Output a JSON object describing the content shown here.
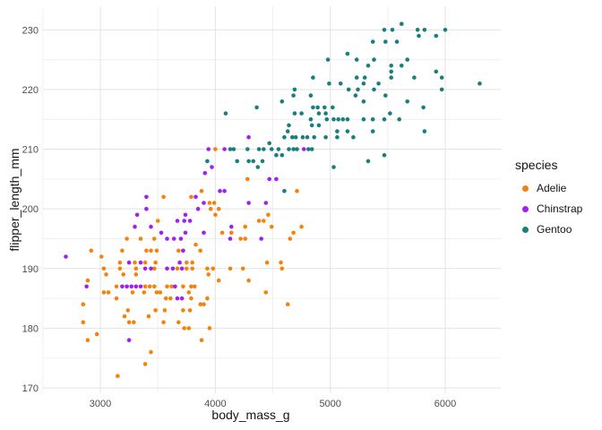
{
  "figure": {
    "background": "#ffffff",
    "panel_background": "#ffffff",
    "grid_major_color": "#e3e3e3",
    "grid_minor_color": "#f0f0f0",
    "tick_label_color": "#4d4d4d",
    "title_color": "#141414"
  },
  "chart_data": {
    "type": "scatter",
    "title": "",
    "xlabel": "body_mass_g",
    "ylabel": "flipper_length_mm",
    "grid": true,
    "legend": {
      "title": "species",
      "position": "right"
    },
    "x_ticks": [
      3000,
      4000,
      5000,
      6000
    ],
    "x_minor_ticks": [
      2500,
      3500,
      4500,
      5500
    ],
    "y_ticks": [
      170,
      180,
      190,
      200,
      210,
      220,
      230
    ],
    "y_minor_ticks": [
      175,
      185,
      195,
      205,
      215,
      225
    ],
    "x_domain": [
      2501,
      6483
    ],
    "y_domain": [
      169.1,
      233.95
    ],
    "point_radius": 2.3,
    "colors": {
      "Adelie": "#F5820B",
      "Chinstrap": "#A020F0",
      "Gentoo": "#17807E"
    },
    "series": [
      {
        "name": "Adelie",
        "color": "#F5820B",
        "points": [
          [
            4000,
            210
          ],
          [
            4280,
            205
          ],
          [
            4710,
            203
          ],
          [
            3880,
            203
          ],
          [
            3550,
            202
          ],
          [
            3790,
            202
          ],
          [
            3950,
            201
          ],
          [
            3990,
            201
          ],
          [
            3960,
            200
          ],
          [
            4030,
            200
          ],
          [
            4000,
            199
          ],
          [
            3500,
            198
          ],
          [
            4460,
            199
          ],
          [
            4490,
            197
          ],
          [
            4380,
            198
          ],
          [
            4420,
            198
          ],
          [
            4260,
            197
          ],
          [
            4750,
            197
          ],
          [
            4680,
            196
          ],
          [
            4650,
            195
          ],
          [
            3470,
            195
          ],
          [
            3230,
            195
          ],
          [
            3350,
            195
          ],
          [
            4060,
            196
          ],
          [
            4140,
            196
          ],
          [
            4220,
            195
          ],
          [
            4260,
            195
          ],
          [
            2920,
            193
          ],
          [
            3010,
            192
          ],
          [
            3190,
            193
          ],
          [
            3400,
            193
          ],
          [
            3440,
            193
          ],
          [
            3490,
            193
          ],
          [
            3680,
            193
          ],
          [
            3720,
            193
          ],
          [
            3830,
            194
          ],
          [
            3870,
            193
          ],
          [
            3170,
            191
          ],
          [
            3300,
            191
          ],
          [
            3390,
            191
          ],
          [
            3480,
            191
          ],
          [
            3750,
            191
          ],
          [
            3800,
            191
          ],
          [
            3030,
            190
          ],
          [
            3170,
            190
          ],
          [
            3310,
            190
          ],
          [
            3470,
            190
          ],
          [
            3670,
            190
          ],
          [
            3750,
            190
          ],
          [
            3800,
            190
          ],
          [
            3930,
            190
          ],
          [
            3980,
            190
          ],
          [
            4130,
            190
          ],
          [
            4240,
            190
          ],
          [
            4580,
            190
          ],
          [
            4570,
            191
          ],
          [
            4450,
            191
          ],
          [
            3940,
            189
          ],
          [
            4030,
            188
          ],
          [
            4290,
            188
          ],
          [
            4440,
            186
          ],
          [
            3930,
            185
          ],
          [
            3900,
            184
          ],
          [
            4630,
            184
          ],
          [
            3950,
            180
          ],
          [
            3880,
            178
          ],
          [
            2890,
            188
          ],
          [
            3050,
            189
          ],
          [
            3200,
            189
          ],
          [
            3310,
            189
          ],
          [
            3030,
            186
          ],
          [
            3070,
            186
          ],
          [
            3140,
            187
          ],
          [
            3390,
            187
          ],
          [
            3430,
            187
          ],
          [
            3470,
            187
          ],
          [
            3580,
            187
          ],
          [
            3620,
            187
          ],
          [
            3720,
            187
          ],
          [
            3790,
            187
          ],
          [
            3820,
            187
          ],
          [
            3280,
            186
          ],
          [
            3380,
            186
          ],
          [
            3490,
            186
          ],
          [
            3520,
            186
          ],
          [
            3570,
            185
          ],
          [
            3610,
            185
          ],
          [
            3770,
            186
          ],
          [
            3790,
            185
          ],
          [
            3140,
            185
          ],
          [
            2850,
            184
          ],
          [
            3870,
            184
          ],
          [
            3240,
            183
          ],
          [
            3480,
            183
          ],
          [
            3560,
            183
          ],
          [
            3720,
            183
          ],
          [
            3780,
            183
          ],
          [
            2850,
            181
          ],
          [
            3210,
            182
          ],
          [
            3250,
            181
          ],
          [
            3290,
            181
          ],
          [
            3420,
            182
          ],
          [
            3550,
            181
          ],
          [
            3680,
            181
          ],
          [
            3730,
            180
          ],
          [
            3770,
            180
          ],
          [
            2970,
            179
          ],
          [
            2890,
            178
          ],
          [
            3440,
            176
          ],
          [
            3390,
            174
          ],
          [
            3150,
            172
          ]
        ]
      },
      {
        "name": "Chinstrap",
        "color": "#A020F0",
        "points": [
          [
            2700,
            192
          ],
          [
            2880,
            187
          ],
          [
            4290,
            212
          ],
          [
            3940,
            210
          ],
          [
            4080,
            210
          ],
          [
            4770,
            210
          ],
          [
            3970,
            207
          ],
          [
            3910,
            206
          ],
          [
            4470,
            205
          ],
          [
            4530,
            205
          ],
          [
            4040,
            203
          ],
          [
            4080,
            203
          ],
          [
            3400,
            202
          ],
          [
            3830,
            202
          ],
          [
            4290,
            201
          ],
          [
            4440,
            201
          ],
          [
            3900,
            201
          ],
          [
            3400,
            200
          ],
          [
            3850,
            200
          ],
          [
            3320,
            199
          ],
          [
            3740,
            199
          ],
          [
            3670,
            198
          ],
          [
            3730,
            198
          ],
          [
            3780,
            198
          ],
          [
            3300,
            197
          ],
          [
            3440,
            197
          ],
          [
            4140,
            197
          ],
          [
            3530,
            196
          ],
          [
            3740,
            196
          ],
          [
            3900,
            196
          ],
          [
            3580,
            195
          ],
          [
            3640,
            195
          ],
          [
            3700,
            195
          ],
          [
            4130,
            195
          ],
          [
            4400,
            195
          ],
          [
            3720,
            193
          ],
          [
            3250,
            191
          ],
          [
            3350,
            191
          ],
          [
            3690,
            191
          ],
          [
            3390,
            190
          ],
          [
            3440,
            190
          ],
          [
            3580,
            190
          ],
          [
            3630,
            190
          ],
          [
            3710,
            190
          ],
          [
            3190,
            187
          ],
          [
            3230,
            187
          ],
          [
            3270,
            187
          ],
          [
            3310,
            187
          ],
          [
            3350,
            187
          ],
          [
            3650,
            187
          ],
          [
            3670,
            185
          ],
          [
            3710,
            185
          ],
          [
            3250,
            178
          ]
        ]
      },
      {
        "name": "Gentoo",
        "color": "#17807E",
        "points": [
          [
            5620,
            231
          ],
          [
            5470,
            230
          ],
          [
            5540,
            230
          ],
          [
            5760,
            230
          ],
          [
            5820,
            230
          ],
          [
            6000,
            230
          ],
          [
            5770,
            229
          ],
          [
            5920,
            229
          ],
          [
            5370,
            228
          ],
          [
            5480,
            228
          ],
          [
            5580,
            228
          ],
          [
            5150,
            226
          ],
          [
            4980,
            225
          ],
          [
            5230,
            225
          ],
          [
            5380,
            225
          ],
          [
            5670,
            225
          ],
          [
            5330,
            224
          ],
          [
            5530,
            224
          ],
          [
            5620,
            224
          ],
          [
            5530,
            223
          ],
          [
            5920,
            223
          ],
          [
            4850,
            222
          ],
          [
            5230,
            222
          ],
          [
            5300,
            222
          ],
          [
            5530,
            222
          ],
          [
            5730,
            222
          ],
          [
            5970,
            222
          ],
          [
            4990,
            221
          ],
          [
            5090,
            221
          ],
          [
            5420,
            221
          ],
          [
            5290,
            221
          ],
          [
            6300,
            221
          ],
          [
            5160,
            220
          ],
          [
            4690,
            220
          ],
          [
            5240,
            220
          ],
          [
            5380,
            220
          ],
          [
            5970,
            220
          ],
          [
            4680,
            219
          ],
          [
            4830,
            219
          ],
          [
            5220,
            219
          ],
          [
            5480,
            219
          ],
          [
            4580,
            218
          ],
          [
            5290,
            218
          ],
          [
            5670,
            218
          ],
          [
            4360,
            217
          ],
          [
            4850,
            217
          ],
          [
            4890,
            217
          ],
          [
            4950,
            217
          ],
          [
            5020,
            217
          ],
          [
            5810,
            217
          ],
          [
            4090,
            216
          ],
          [
            4690,
            216
          ],
          [
            4750,
            216
          ],
          [
            4900,
            216
          ],
          [
            4960,
            216
          ],
          [
            5520,
            216
          ],
          [
            4830,
            215
          ],
          [
            4970,
            215
          ],
          [
            5030,
            215
          ],
          [
            5070,
            215
          ],
          [
            5110,
            215
          ],
          [
            5150,
            215
          ],
          [
            5290,
            215
          ],
          [
            5370,
            215
          ],
          [
            5470,
            215
          ],
          [
            5600,
            215
          ],
          [
            4640,
            214
          ],
          [
            4840,
            214
          ],
          [
            4900,
            214
          ],
          [
            4630,
            213
          ],
          [
            5060,
            213
          ],
          [
            5150,
            213
          ],
          [
            5370,
            213
          ],
          [
            5820,
            213
          ],
          [
            4600,
            212
          ],
          [
            4670,
            212
          ],
          [
            4700,
            212
          ],
          [
            4760,
            212
          ],
          [
            4800,
            212
          ],
          [
            4860,
            212
          ],
          [
            4960,
            212
          ],
          [
            5060,
            212
          ],
          [
            5200,
            212
          ],
          [
            4470,
            211
          ],
          [
            4130,
            210
          ],
          [
            4160,
            210
          ],
          [
            4280,
            210
          ],
          [
            4380,
            210
          ],
          [
            4420,
            210
          ],
          [
            4490,
            210
          ],
          [
            4550,
            210
          ],
          [
            4640,
            210
          ],
          [
            4680,
            210
          ],
          [
            4710,
            210
          ],
          [
            4810,
            210
          ],
          [
            4840,
            210
          ],
          [
            3930,
            208
          ],
          [
            4190,
            208
          ],
          [
            4290,
            208
          ],
          [
            4330,
            208
          ],
          [
            4410,
            208
          ],
          [
            4370,
            207
          ],
          [
            4530,
            209
          ],
          [
            4580,
            209
          ],
          [
            5330,
            208
          ],
          [
            5470,
            209
          ],
          [
            5030,
            207
          ],
          [
            4600,
            203
          ]
        ]
      }
    ]
  }
}
